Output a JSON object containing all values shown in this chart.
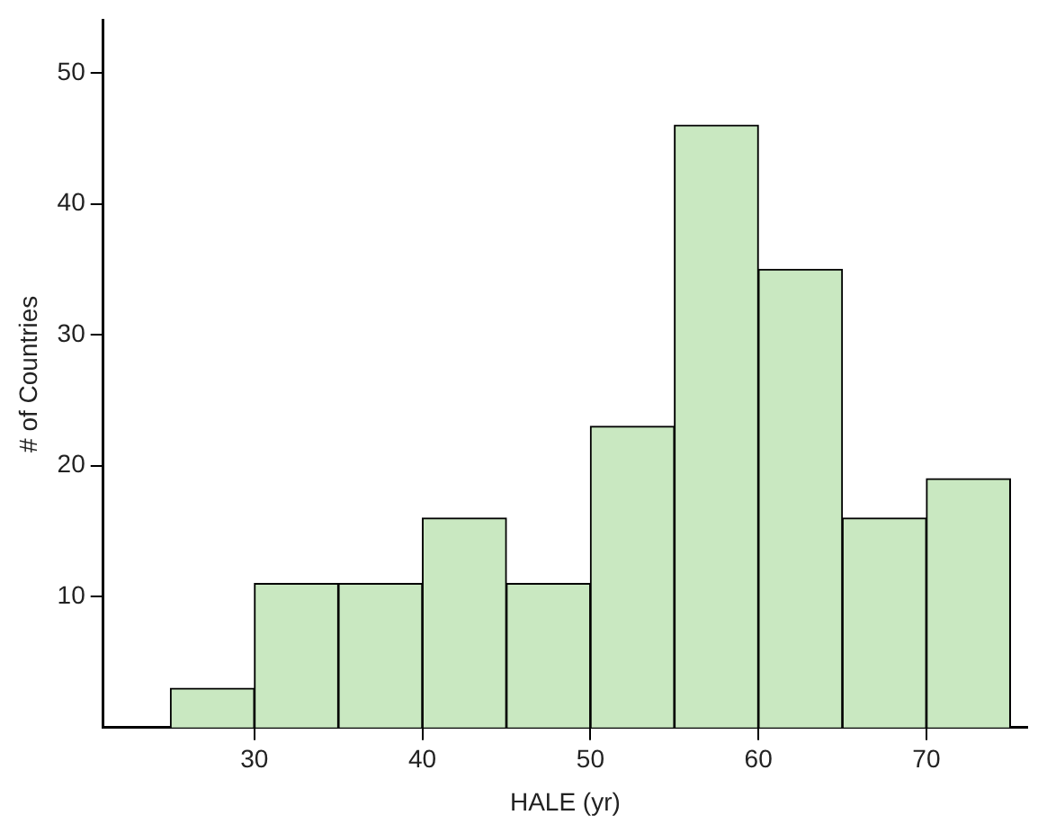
{
  "chart_data": {
    "type": "histogram",
    "xlabel": "HALE (yr)",
    "ylabel": "# of Countries",
    "bins": [
      25,
      30,
      35,
      40,
      45,
      50,
      55,
      60,
      65,
      70,
      75
    ],
    "values": [
      3,
      11,
      11,
      16,
      11,
      23,
      46,
      35,
      16,
      19
    ],
    "color": "#c9e8c1",
    "xlim": [
      21,
      76
    ],
    "xticks": [
      30,
      40,
      50,
      60,
      70
    ],
    "ylim": [
      0,
      54
    ],
    "yticks": [
      10,
      20,
      30,
      40,
      50
    ]
  }
}
